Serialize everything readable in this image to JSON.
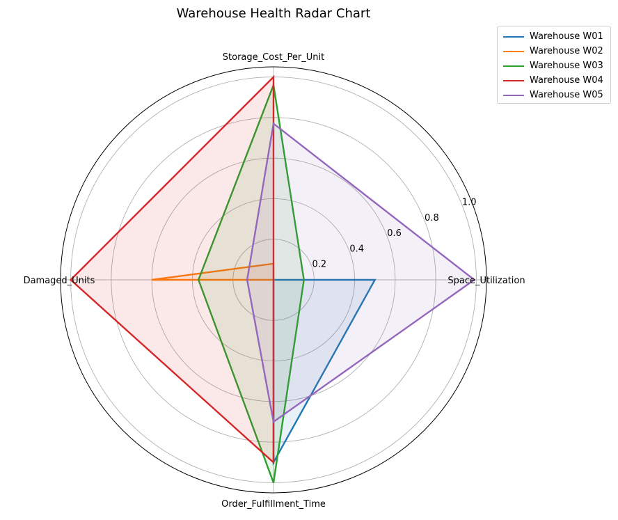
{
  "chart_data": {
    "type": "radar",
    "title": "Warehouse Health Radar Chart",
    "axes": [
      "Space_Utilization",
      "Storage_Cost_Per_Unit",
      "Damaged_Units",
      "Order_Fulfillment_Time"
    ],
    "rlim": [
      0,
      1.05
    ],
    "rticks": [
      0.2,
      0.4,
      0.6,
      0.8,
      1.0
    ],
    "rtick_labels": [
      "0.2",
      "0.4",
      "0.6",
      "0.8",
      "1.0"
    ],
    "grid": true,
    "legend_position": "top-right outside",
    "series": [
      {
        "name": "Warehouse W01",
        "color": "#1f77b4",
        "values": [
          0.5,
          0.0,
          0.0,
          0.9
        ],
        "filled": true
      },
      {
        "name": "Warehouse W02",
        "color": "#ff7f0e",
        "values": [
          0.0,
          0.08,
          0.6,
          0.0
        ],
        "filled": true
      },
      {
        "name": "Warehouse W03",
        "color": "#2ca02c",
        "values": [
          0.15,
          0.96,
          0.37,
          1.0
        ],
        "filled": true
      },
      {
        "name": "Warehouse W04",
        "color": "#d62728",
        "values": [
          0.0,
          1.0,
          1.0,
          0.9
        ],
        "filled": true
      },
      {
        "name": "Warehouse W05",
        "color": "#9467bd",
        "values": [
          0.99,
          0.77,
          0.13,
          0.7
        ],
        "filled": true
      }
    ]
  }
}
